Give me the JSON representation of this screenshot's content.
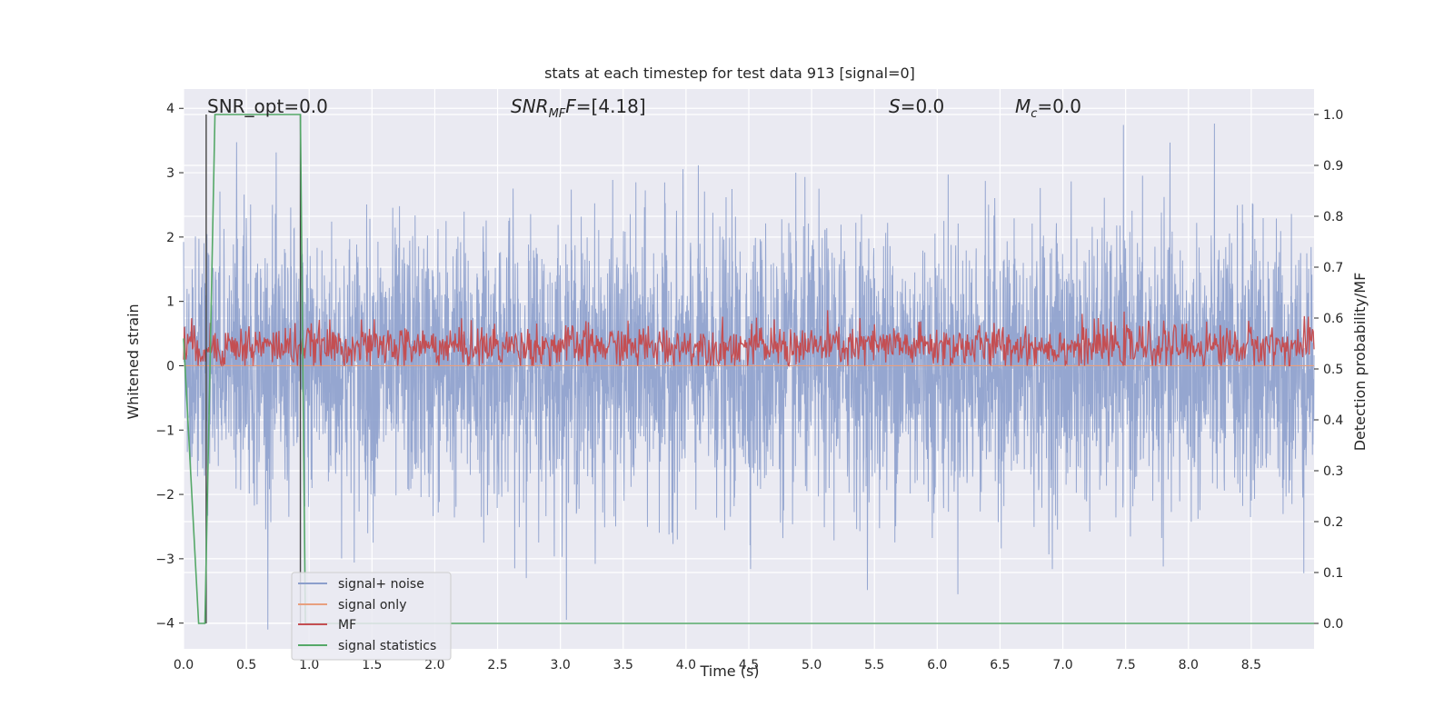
{
  "chart_data": {
    "type": "line",
    "title": "stats at each timestep for test data 913 [signal=0]",
    "xlabel": "Time (s)",
    "ylabel": "Whitened strain",
    "y2label": "Detection probability/MF",
    "xlim": [
      0.0,
      9.0
    ],
    "ylim": [
      -4.4,
      4.3
    ],
    "y2lim": [
      -0.05,
      1.05
    ],
    "xticks": [
      "0.0",
      "0.5",
      "1.0",
      "1.5",
      "2.0",
      "2.5",
      "3.0",
      "3.5",
      "4.0",
      "4.5",
      "5.0",
      "5.5",
      "6.0",
      "6.5",
      "7.0",
      "7.5",
      "8.0",
      "8.5"
    ],
    "yticks": [
      "4",
      "3",
      "2",
      "1",
      "0",
      "−1",
      "−2",
      "−3",
      "−4"
    ],
    "y2ticks": [
      "1.0",
      "0.9",
      "0.8",
      "0.7",
      "0.6",
      "0.5",
      "0.4",
      "0.3",
      "0.2",
      "0.1",
      "0.0"
    ],
    "grid": true,
    "legend_position": "lower-left",
    "annotations": {
      "snr_opt": "SNR_opt=0.0",
      "snr_mf_base": "SNR",
      "snr_mf_sub": "MF",
      "snr_mf_value": "=[4.18]",
      "s_base": "S",
      "s_value": "=0.0",
      "mc_base": "M",
      "mc_sub": "c",
      "mc_value": "=0.0"
    },
    "series": [
      {
        "name": "signal+ noise",
        "color": "#8c9fcc",
        "kind": "noise",
        "amplitude_std": 1.0
      },
      {
        "name": "signal only",
        "color": "#e8a07f",
        "kind": "flat",
        "value": 0.0
      },
      {
        "name": "MF",
        "color": "#c44e52",
        "kind": "mf",
        "mean": 0.3,
        "range": [
          0.0,
          1.0
        ]
      },
      {
        "name": "signal statistics",
        "color": "#55a868",
        "axis": "right",
        "x": [
          0.0,
          0.12,
          0.17,
          0.25,
          0.93,
          0.97,
          9.0
        ],
        "y": [
          0.56,
          0.0,
          0.0,
          1.0,
          1.0,
          0.0,
          0.0
        ]
      }
    ],
    "vertical_markers": {
      "color": "#444444",
      "x": [
        0.18,
        0.93
      ]
    }
  }
}
